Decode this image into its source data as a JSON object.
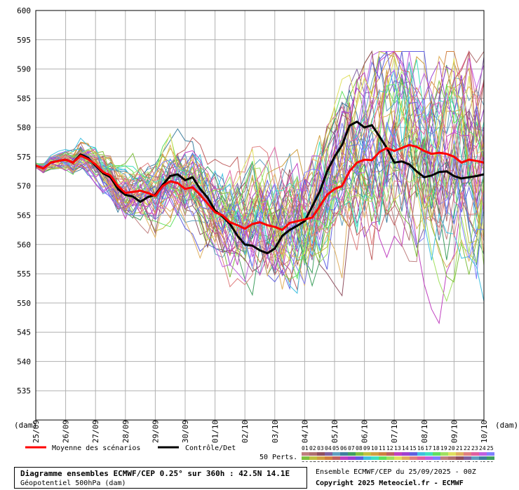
{
  "chart_data": {
    "type": "line",
    "y_unit_label": "(dam)",
    "x_unit_label": "(dam)",
    "ylim": [
      530,
      600
    ],
    "y_ticks": [
      535,
      540,
      545,
      550,
      555,
      560,
      565,
      570,
      575,
      580,
      585,
      590,
      595,
      600
    ],
    "x_ticks": [
      "25/09",
      "26/09",
      "27/09",
      "28/09",
      "29/09",
      "30/09",
      "01/10",
      "02/10",
      "03/10",
      "04/10",
      "05/10",
      "06/10",
      "07/10",
      "08/10",
      "09/10",
      "10/10"
    ],
    "grid": true,
    "x_days": [
      0,
      0.25,
      0.5,
      0.75,
      1,
      1.25,
      1.5,
      1.75,
      2,
      2.25,
      2.5,
      2.75,
      3,
      3.25,
      3.5,
      3.75,
      4,
      4.25,
      4.5,
      4.75,
      5,
      5.25,
      5.5,
      5.75,
      6,
      6.25,
      6.5,
      6.75,
      7,
      7.25,
      7.5,
      7.75,
      8,
      8.25,
      8.5,
      8.75,
      9,
      9.25,
      9.5,
      9.75,
      10,
      10.25,
      10.5,
      10.75,
      11,
      11.25,
      11.5,
      11.75,
      12,
      12.25,
      12.5,
      12.75,
      13,
      13.25,
      13.5,
      13.75,
      14,
      14.25,
      14.5,
      14.75,
      15
    ],
    "series": [
      {
        "name": "Moyenne des scénarios",
        "color": "#ff0000",
        "width": 3,
        "values": [
          573.5,
          573,
          574,
          574.3,
          574.5,
          574,
          575.2,
          574.6,
          573.7,
          572.4,
          571.8,
          570,
          568.8,
          569,
          569.2,
          568.8,
          568.3,
          570,
          570.8,
          570.5,
          569.5,
          569.8,
          568.5,
          567,
          565.5,
          565,
          563.8,
          563.3,
          562.7,
          563.5,
          563.8,
          563.3,
          563,
          562.5,
          563.7,
          564,
          564.3,
          564.6,
          566.5,
          568.5,
          569.5,
          570,
          572.5,
          574,
          574.5,
          574.4,
          575.8,
          576.5,
          576,
          576.5,
          577,
          576.7,
          576,
          575.5,
          575.7,
          575.5,
          575,
          574,
          574.5,
          574.3,
          574
        ]
      },
      {
        "name": "Contrôle/Det",
        "color": "#000000",
        "width": 3,
        "values": [
          573.5,
          573,
          574,
          574.3,
          574.5,
          574,
          575.4,
          574.8,
          573.5,
          572.2,
          571.5,
          569.5,
          568.5,
          568.2,
          567.3,
          568.1,
          568.5,
          570.2,
          571.7,
          572,
          571,
          571.5,
          569.5,
          568,
          565.8,
          564.8,
          563.5,
          561.5,
          560,
          559.8,
          559,
          558.5,
          559.3,
          561.5,
          562.5,
          563.2,
          564,
          566.5,
          569,
          572.5,
          575,
          577,
          580.3,
          581,
          580,
          580.4,
          578.5,
          576.5,
          574,
          574.2,
          573.7,
          572.5,
          571.5,
          571.8,
          572.4,
          572.5,
          571.7,
          571.3,
          571.5,
          571.7,
          572
        ]
      }
    ],
    "legend": {
      "mean_label": "Moyenne des scénarios",
      "control_label": "Contrôle/Det",
      "perts_label": "50 Perts.",
      "perts_row1": [
        "01",
        "02",
        "03",
        "04",
        "05",
        "06",
        "07",
        "08",
        "09",
        "10",
        "11",
        "12",
        "13",
        "14",
        "15",
        "16",
        "17",
        "18",
        "19",
        "20",
        "21",
        "22",
        "23",
        "24",
        "25"
      ],
      "perts_row2": [
        "26",
        "27",
        "28",
        "29",
        "30",
        "31",
        "32",
        "33",
        "34",
        "35",
        "36",
        "37",
        "38",
        "39",
        "40",
        "41",
        "42",
        "43",
        "44",
        "45",
        "46",
        "47",
        "48",
        "49",
        "50"
      ]
    }
  },
  "footer": {
    "title": "Diagramme ensembles ECMWF/CEP 0.25° sur 360h : 42.5N 14.1E",
    "subtitle": "Géopotentiel 500hPa (dam)",
    "run": "Ensemble ECMWF/CEP du 25/09/2025 - 00Z",
    "copyright": "Copyright 2025 Meteociel.fr - ECMWF"
  },
  "ensemble_colors": [
    "#c08080",
    "#b07070",
    "#905060",
    "#8060a0",
    "#60a0c0",
    "#4080a0",
    "#40a060",
    "#80c040",
    "#c0c040",
    "#d0a040",
    "#d08040",
    "#c06060",
    "#c040c0",
    "#a040d0",
    "#6060e0",
    "#40c0e0",
    "#40e0c0",
    "#60e060",
    "#a0e060",
    "#e0e060",
    "#e0b060",
    "#e08080",
    "#e060a0",
    "#c060e0",
    "#8080ff"
  ]
}
